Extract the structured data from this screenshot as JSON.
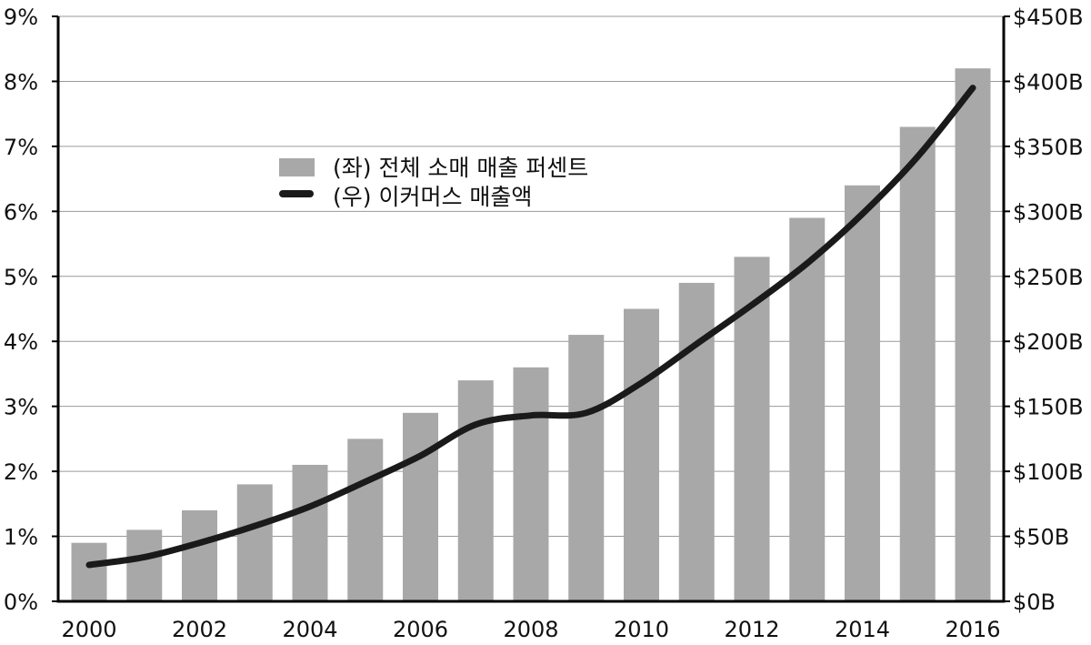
{
  "chart_data": {
    "type": "bar+line",
    "categories": [
      "2000",
      "2001",
      "2002",
      "2003",
      "2004",
      "2005",
      "2006",
      "2007",
      "2008",
      "2009",
      "2010",
      "2011",
      "2012",
      "2013",
      "2014",
      "2015",
      "2016"
    ],
    "x_tick_labels": [
      "2000",
      "2002",
      "2004",
      "2006",
      "2008",
      "2010",
      "2012",
      "2014",
      "2016"
    ],
    "series": [
      {
        "name": "(좌) 전체 소매 매출 퍼센트",
        "type": "bar",
        "axis": "left",
        "color": "#a8a8a8",
        "values": [
          0.9,
          1.1,
          1.4,
          1.8,
          2.1,
          2.5,
          2.9,
          3.4,
          3.6,
          4.1,
          4.5,
          4.9,
          5.3,
          5.9,
          6.4,
          7.3,
          8.2
        ]
      },
      {
        "name": "(우) 이커머스 매출액",
        "type": "line",
        "axis": "right",
        "color": "#1a1a1a",
        "values": [
          28,
          34,
          45,
          58,
          73,
          92,
          112,
          136,
          143,
          145,
          168,
          198,
          228,
          260,
          298,
          342,
          395
        ]
      }
    ],
    "left_axis": {
      "ylim": [
        0,
        9
      ],
      "ticks": [
        0,
        1,
        2,
        3,
        4,
        5,
        6,
        7,
        8,
        9
      ],
      "tick_labels": [
        "0%",
        "1%",
        "2%",
        "3%",
        "4%",
        "5%",
        "6%",
        "7%",
        "8%",
        "9%"
      ]
    },
    "right_axis": {
      "ylim": [
        0,
        450
      ],
      "ticks": [
        0,
        50,
        100,
        150,
        200,
        250,
        300,
        350,
        400,
        450
      ],
      "tick_labels": [
        "$0B",
        "$50B",
        "$100B",
        "$150B",
        "$200B",
        "$250B",
        "$300B",
        "$350B",
        "$400B",
        "$450B"
      ]
    },
    "grid": true,
    "legend_position": "upper-left-center",
    "title": "",
    "xlabel": "",
    "ylabel": ""
  }
}
